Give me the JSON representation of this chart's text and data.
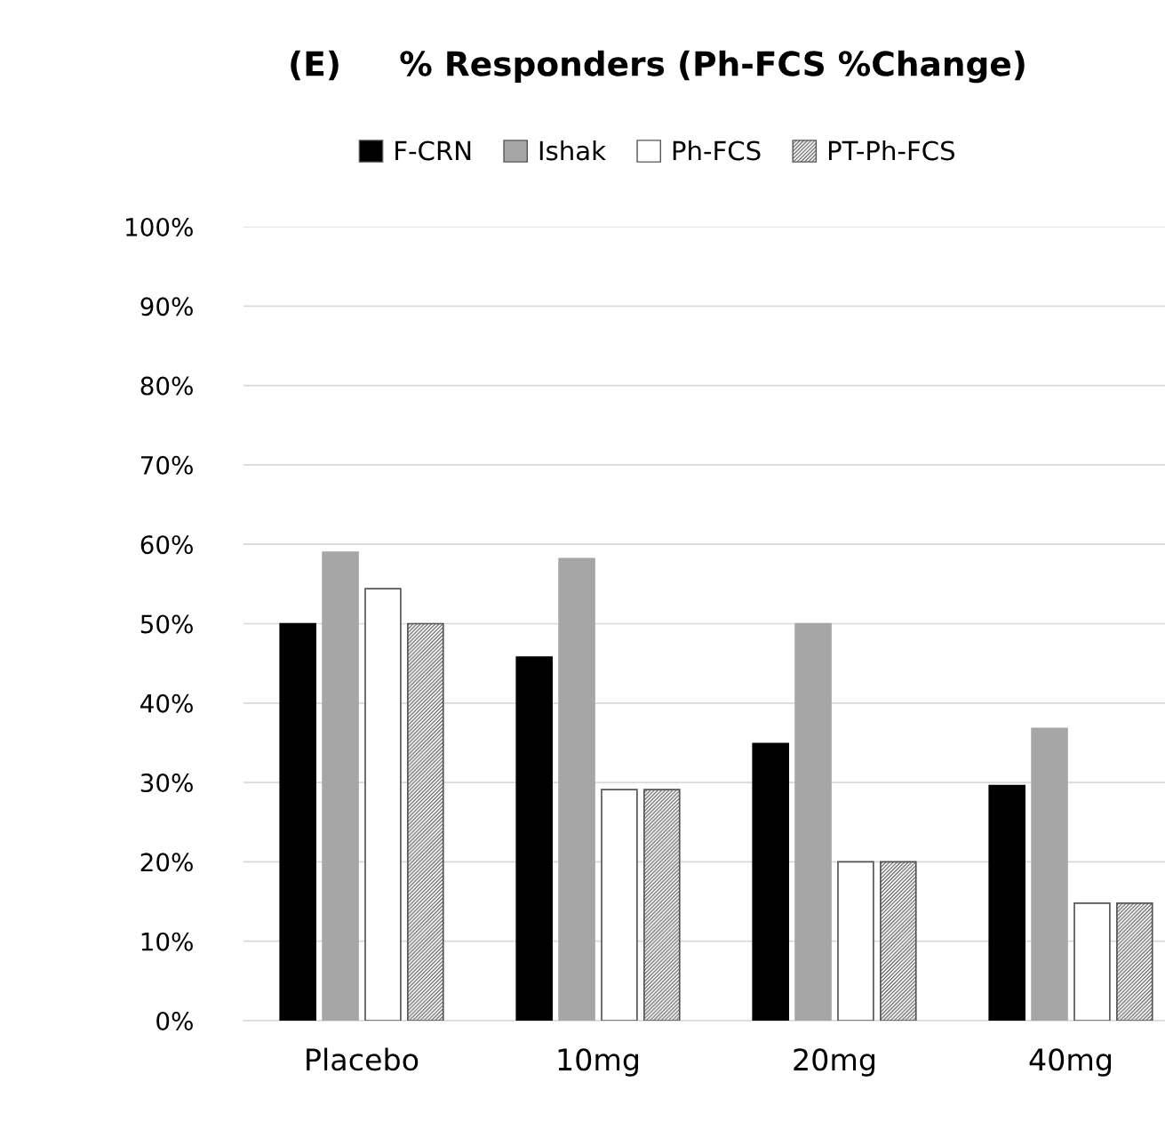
{
  "chart_data": {
    "type": "bar",
    "title": "(E)     % Responders (Ph-FCS %Change)",
    "categories": [
      "Placebo",
      "10mg",
      "20mg",
      "40mg"
    ],
    "series": [
      {
        "name": "F-CRN",
        "color": "#000000",
        "values": [
          50,
          45.8,
          34.9,
          29.6
        ]
      },
      {
        "name": "Ishak",
        "color": "#a6a6a6",
        "values": [
          59.0,
          58.2,
          50,
          36.8
        ]
      },
      {
        "name": "Ph-FCS",
        "color": "#ffffff",
        "values": [
          54.4,
          29.1,
          20,
          14.8
        ]
      },
      {
        "name": "PT-Ph-FCS",
        "color": "#555555",
        "values": [
          50,
          29.1,
          20,
          14.8
        ]
      }
    ],
    "ylim": [
      0,
      100
    ],
    "yticks": [
      {
        "value": 0,
        "label": "0%"
      },
      {
        "value": 10,
        "label": "10%"
      },
      {
        "value": 20,
        "label": "20%"
      },
      {
        "value": 30,
        "label": "30%"
      },
      {
        "value": 40,
        "label": "40%"
      },
      {
        "value": 50,
        "label": "50%"
      },
      {
        "value": 60,
        "label": "60%"
      },
      {
        "value": 70,
        "label": "70%"
      },
      {
        "value": 80,
        "label": "80%"
      },
      {
        "value": 90,
        "label": "90%"
      },
      {
        "value": 100,
        "label": "100%"
      }
    ],
    "grid": "y",
    "legend": "top"
  }
}
